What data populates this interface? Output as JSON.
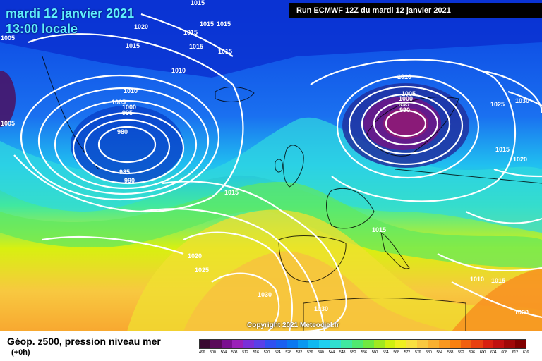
{
  "header": {
    "date_line": "mardi 12 janvier 2021",
    "time_line": "13:00 locale",
    "run_info": "Run ECMWF 12Z du mardi 12 janvier 2021"
  },
  "map": {
    "isobars": [
      {
        "id": "i1",
        "value": "1015"
      },
      {
        "id": "i2",
        "value": "1020"
      },
      {
        "id": "i3",
        "value": "1015"
      },
      {
        "id": "i4",
        "value": "1015"
      },
      {
        "id": "i5",
        "value": "1015"
      },
      {
        "id": "i6",
        "value": "1015"
      },
      {
        "id": "i7",
        "value": "1005"
      },
      {
        "id": "i8",
        "value": "1015"
      },
      {
        "id": "i9",
        "value": "1015"
      },
      {
        "id": "i10",
        "value": "1010"
      },
      {
        "id": "i11",
        "value": "1010"
      },
      {
        "id": "i12",
        "value": "1005"
      },
      {
        "id": "i13",
        "value": "1000"
      },
      {
        "id": "i14",
        "value": "995"
      },
      {
        "id": "i15",
        "value": "980"
      },
      {
        "id": "i16",
        "value": "985"
      },
      {
        "id": "i17",
        "value": "990"
      },
      {
        "id": "i18",
        "value": "1005"
      },
      {
        "id": "i19",
        "value": "1015"
      },
      {
        "id": "i20",
        "value": "1020"
      },
      {
        "id": "i21",
        "value": "1025"
      },
      {
        "id": "i22",
        "value": "1030"
      },
      {
        "id": "i23",
        "value": "1030"
      },
      {
        "id": "i24",
        "value": "1010"
      },
      {
        "id": "i25",
        "value": "1005"
      },
      {
        "id": "i26",
        "value": "1000"
      },
      {
        "id": "i27",
        "value": "995"
      },
      {
        "id": "i28",
        "value": "990"
      },
      {
        "id": "i29",
        "value": "1025"
      },
      {
        "id": "i30",
        "value": "1030"
      },
      {
        "id": "i31",
        "value": "1015"
      },
      {
        "id": "i32",
        "value": "1020"
      },
      {
        "id": "i33",
        "value": "1015"
      },
      {
        "id": "i34",
        "value": "1010"
      },
      {
        "id": "i35",
        "value": "1015"
      },
      {
        "id": "i36",
        "value": "1020"
      }
    ],
    "copyright": "Copyright 2021 Meteociel.fr"
  },
  "footer": {
    "title": "Géop. z500, pression niveau mer",
    "subtitle": "(+0h)"
  },
  "legend": {
    "labels": [
      "496",
      "500",
      "504",
      "508",
      "512",
      "516",
      "520",
      "524",
      "528",
      "532",
      "536",
      "540",
      "544",
      "548",
      "552",
      "556",
      "560",
      "564",
      "568",
      "572",
      "576",
      "580",
      "584",
      "588",
      "592",
      "596",
      "600",
      "604",
      "608",
      "612",
      "616"
    ],
    "colors": [
      "#3a0830",
      "#5a0a5a",
      "#7a1090",
      "#9a20b8",
      "#7a30d8",
      "#5a40e8",
      "#3050f0",
      "#1a60f0",
      "#0a78f0",
      "#0a98f0",
      "#10b8f0",
      "#20d0f0",
      "#30e0d0",
      "#40e8a0",
      "#50e870",
      "#70e840",
      "#a0e820",
      "#d0f010",
      "#f0f020",
      "#f8e040",
      "#f8c840",
      "#f8b030",
      "#f89820",
      "#f88010",
      "#f06010",
      "#e84010",
      "#d82010",
      "#c01010",
      "#a00808",
      "#800000"
    ]
  }
}
